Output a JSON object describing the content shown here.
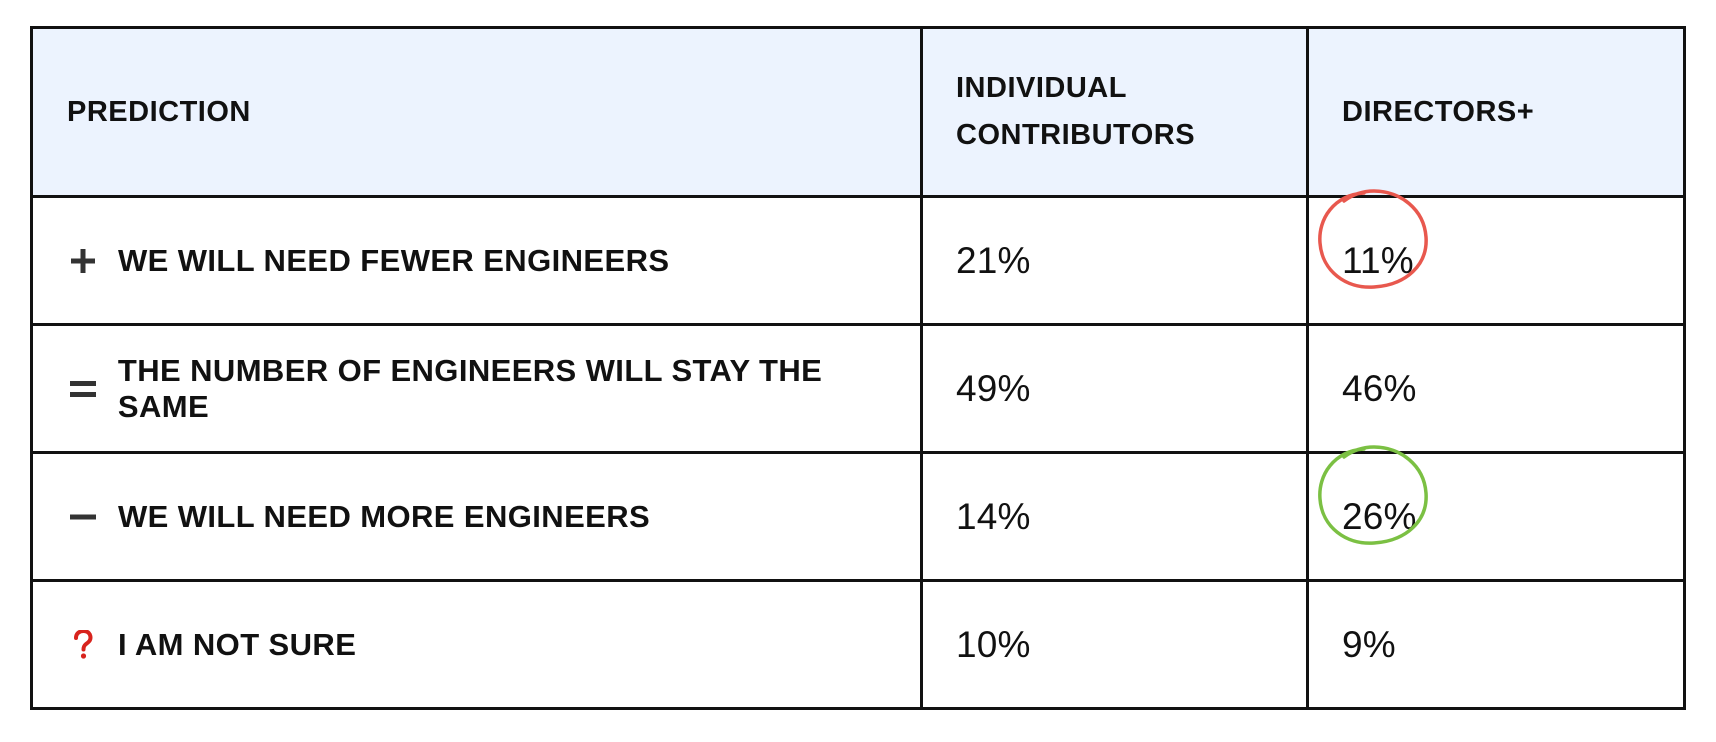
{
  "chart_data": {
    "type": "table",
    "columns": [
      "PREDICTION",
      "INDIVIDUAL\nCONTRIBUTORS",
      "DIRECTORS+"
    ],
    "rows": [
      {
        "icon": "plus-icon",
        "prediction": "WE WILL NEED FEWER ENGINEERS",
        "individual_contributors": "21%",
        "directors": "11%",
        "highlight": {
          "column": "directors",
          "color": "#e8584e"
        }
      },
      {
        "icon": "equals-icon",
        "prediction": "THE NUMBER OF ENGINEERS WILL STAY THE SAME",
        "individual_contributors": "49%",
        "directors": "46%"
      },
      {
        "icon": "minus-icon",
        "prediction": "WE WILL NEED MORE ENGINEERS",
        "individual_contributors": "14%",
        "directors": "26%",
        "highlight": {
          "column": "directors",
          "color": "#7bc043"
        }
      },
      {
        "icon": "question-icon",
        "prediction": "I AM NOT SURE",
        "individual_contributors": "10%",
        "directors": "9%"
      }
    ],
    "colors": {
      "header_background": "#ecf3fe",
      "border": "#111111",
      "question_mark": "#d8231d",
      "red_circle": "#e8584e",
      "green_circle": "#7bc043"
    }
  }
}
